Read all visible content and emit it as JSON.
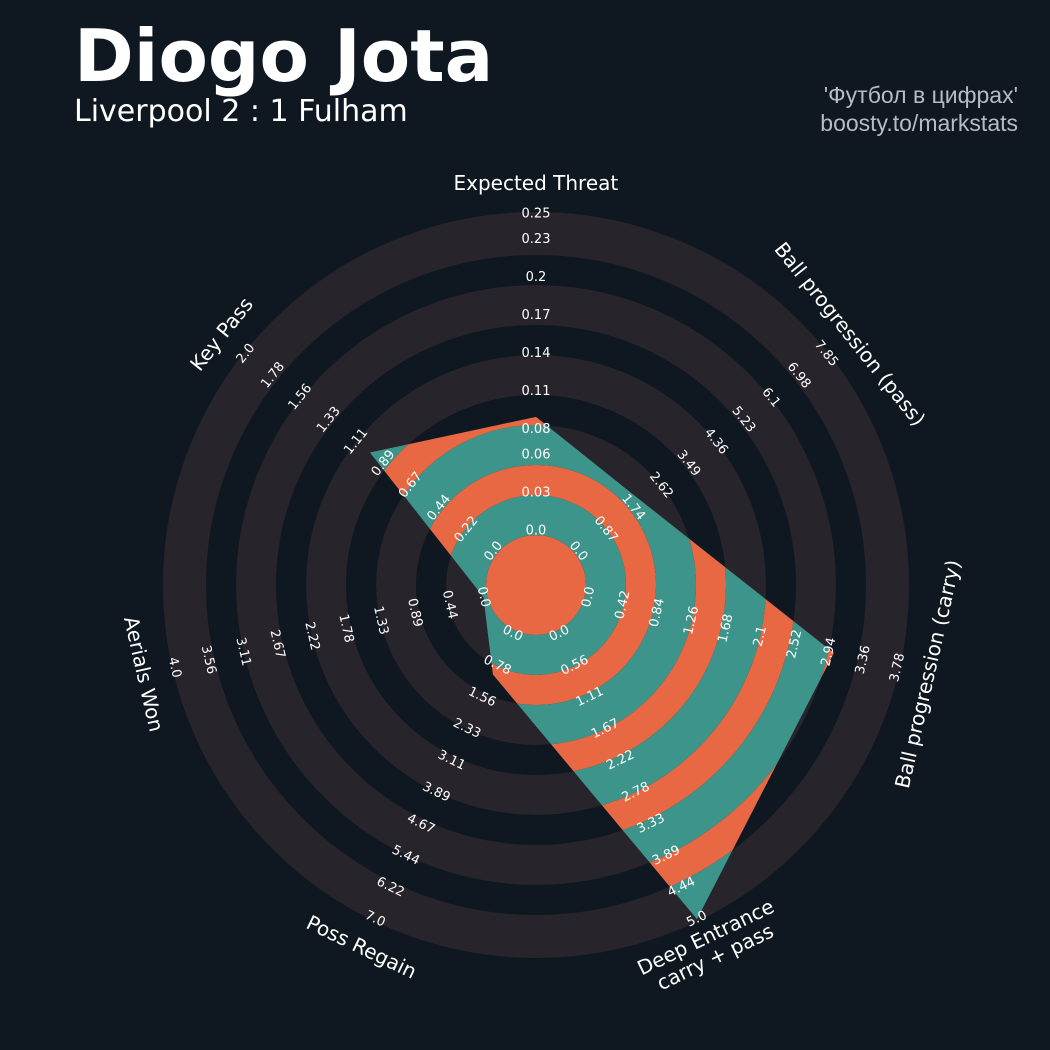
{
  "chart_data": {
    "type": "radar",
    "title": "Diogo Jota",
    "subtitle": "Liverpool 2 : 1 Fulham",
    "credits": [
      "'Футбол в цифрах'",
      "boosty.to/markstats"
    ],
    "params": [
      "Expected Threat",
      "Ball progression (pass)",
      "Ball progression (carry)",
      "Deep Entrance\ncarry + pass",
      "Poss Regain",
      "Aerials Won",
      "Key Pass"
    ],
    "values": [
      0.09,
      2.0,
      3.0,
      5.0,
      1.0,
      0.0,
      1.0
    ],
    "ranges": [
      [
        0,
        0.25
      ],
      [
        0,
        7.85
      ],
      [
        0,
        3.78
      ],
      [
        0,
        5
      ],
      [
        0,
        7
      ],
      [
        0,
        4
      ],
      [
        0,
        2
      ]
    ],
    "ticks": [
      [
        {
          "value": 0,
          "label": "0.0"
        },
        0.03,
        0.06,
        0.08,
        0.11,
        0.14,
        0.17,
        0.2,
        0.23,
        0.25
      ],
      [
        {
          "value": 0,
          "label": "0.0"
        },
        0.87,
        1.74,
        2.62,
        3.49,
        4.36,
        5.23,
        6.1,
        6.98,
        7.85
      ],
      [
        {
          "value": 0,
          "label": "0.0"
        },
        0.42,
        0.84,
        1.26,
        1.68,
        2.1,
        2.52,
        2.94,
        3.36,
        3.78
      ],
      [
        {
          "value": 0,
          "label": "0.0"
        },
        0.56,
        1.11,
        1.67,
        2.22,
        2.78,
        3.33,
        3.89,
        4.44,
        {
          "value": 5,
          "label": "5.0"
        }
      ],
      [
        {
          "value": 0,
          "label": "0.0"
        },
        0.78,
        1.56,
        2.33,
        3.11,
        3.89,
        4.67,
        5.44,
        6.22,
        {
          "value": 7,
          "label": "7.0"
        }
      ],
      [
        {
          "value": 0,
          "label": "0.0"
        },
        0.44,
        0.89,
        1.33,
        1.78,
        2.22,
        2.67,
        3.11,
        3.56,
        {
          "value": 4,
          "label": "4.0"
        }
      ],
      [
        {
          "value": 0,
          "label": "0.0"
        },
        0.22,
        0.44,
        0.67,
        0.89,
        1.11,
        1.33,
        1.56,
        1.78,
        {
          "value": 2,
          "label": "2.0"
        }
      ]
    ],
    "ring_colors": [
      "#28242b",
      "#0f1820"
    ],
    "fill_colors": [
      "#3d948b",
      "#e76842"
    ]
  }
}
